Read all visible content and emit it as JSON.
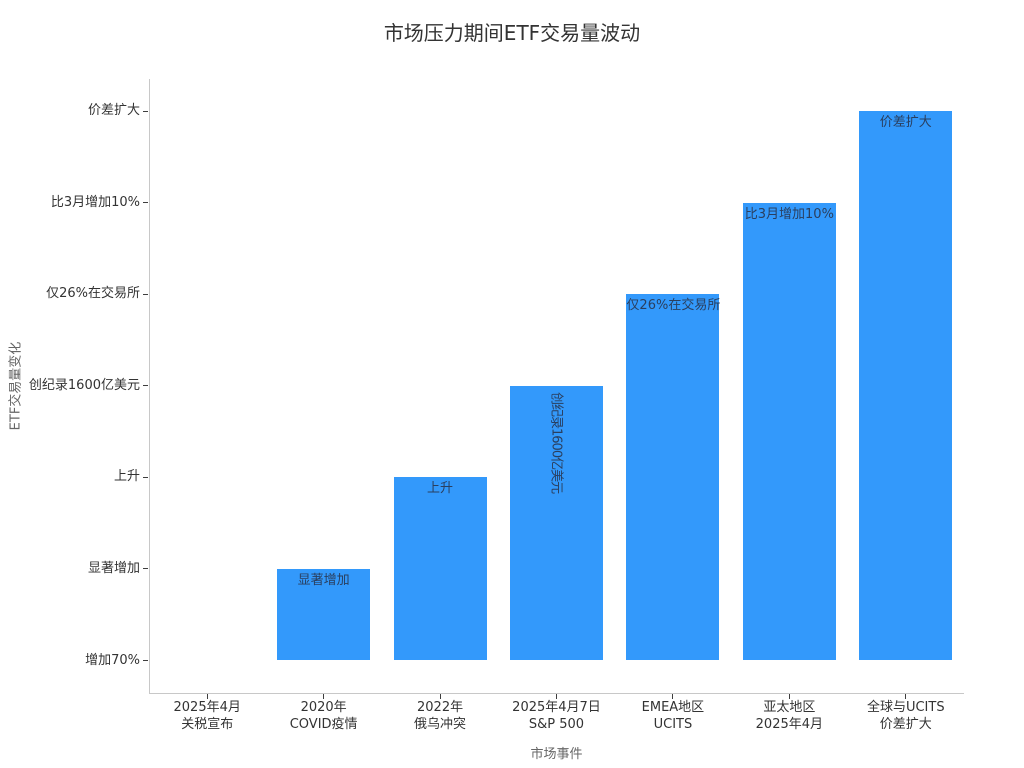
{
  "title": "市场压力期间ETF交易量波动",
  "chart_data": {
    "type": "bar",
    "title": "市场压力期间ETF交易量波动",
    "xlabel": "市场事件",
    "ylabel": "ETF交易量变化",
    "categories": [
      {
        "line1": "2025年4月",
        "line2": "关税宣布"
      },
      {
        "line1": "2020年",
        "line2": "COVID疫情"
      },
      {
        "line1": "2022年",
        "line2": "俄乌冲突"
      },
      {
        "line1": "2025年4月7日",
        "line2": "S&P 500"
      },
      {
        "line1": "EMEA地区",
        "line2": "UCITS"
      },
      {
        "line1": "亚太地区",
        "line2": "2025年4月"
      },
      {
        "line1": "全球与UCITS",
        "line2": "价差扩大"
      }
    ],
    "values": [
      "增加70%",
      "显著增加",
      "上升",
      "创纪录1600亿美元",
      "仅26%在交易所",
      "比3月增加10%",
      "价差扩大"
    ],
    "value_levels": [
      0,
      1,
      2,
      3,
      4,
      5,
      6
    ],
    "ytick_labels": [
      "增加70%",
      "显著增加",
      "上升",
      "创纪录1600亿美元",
      "仅26%在交易所",
      "比3月增加10%",
      "价差扩大"
    ],
    "bar_color": "#3399fb",
    "bar_label_color": "#2a3f5f",
    "tick_label_color": "#333333",
    "axis_title_color": "#666666",
    "axis_line_color": "#c8c8c8",
    "ylim": [
      0,
      6
    ],
    "grid": false,
    "legend": false
  }
}
